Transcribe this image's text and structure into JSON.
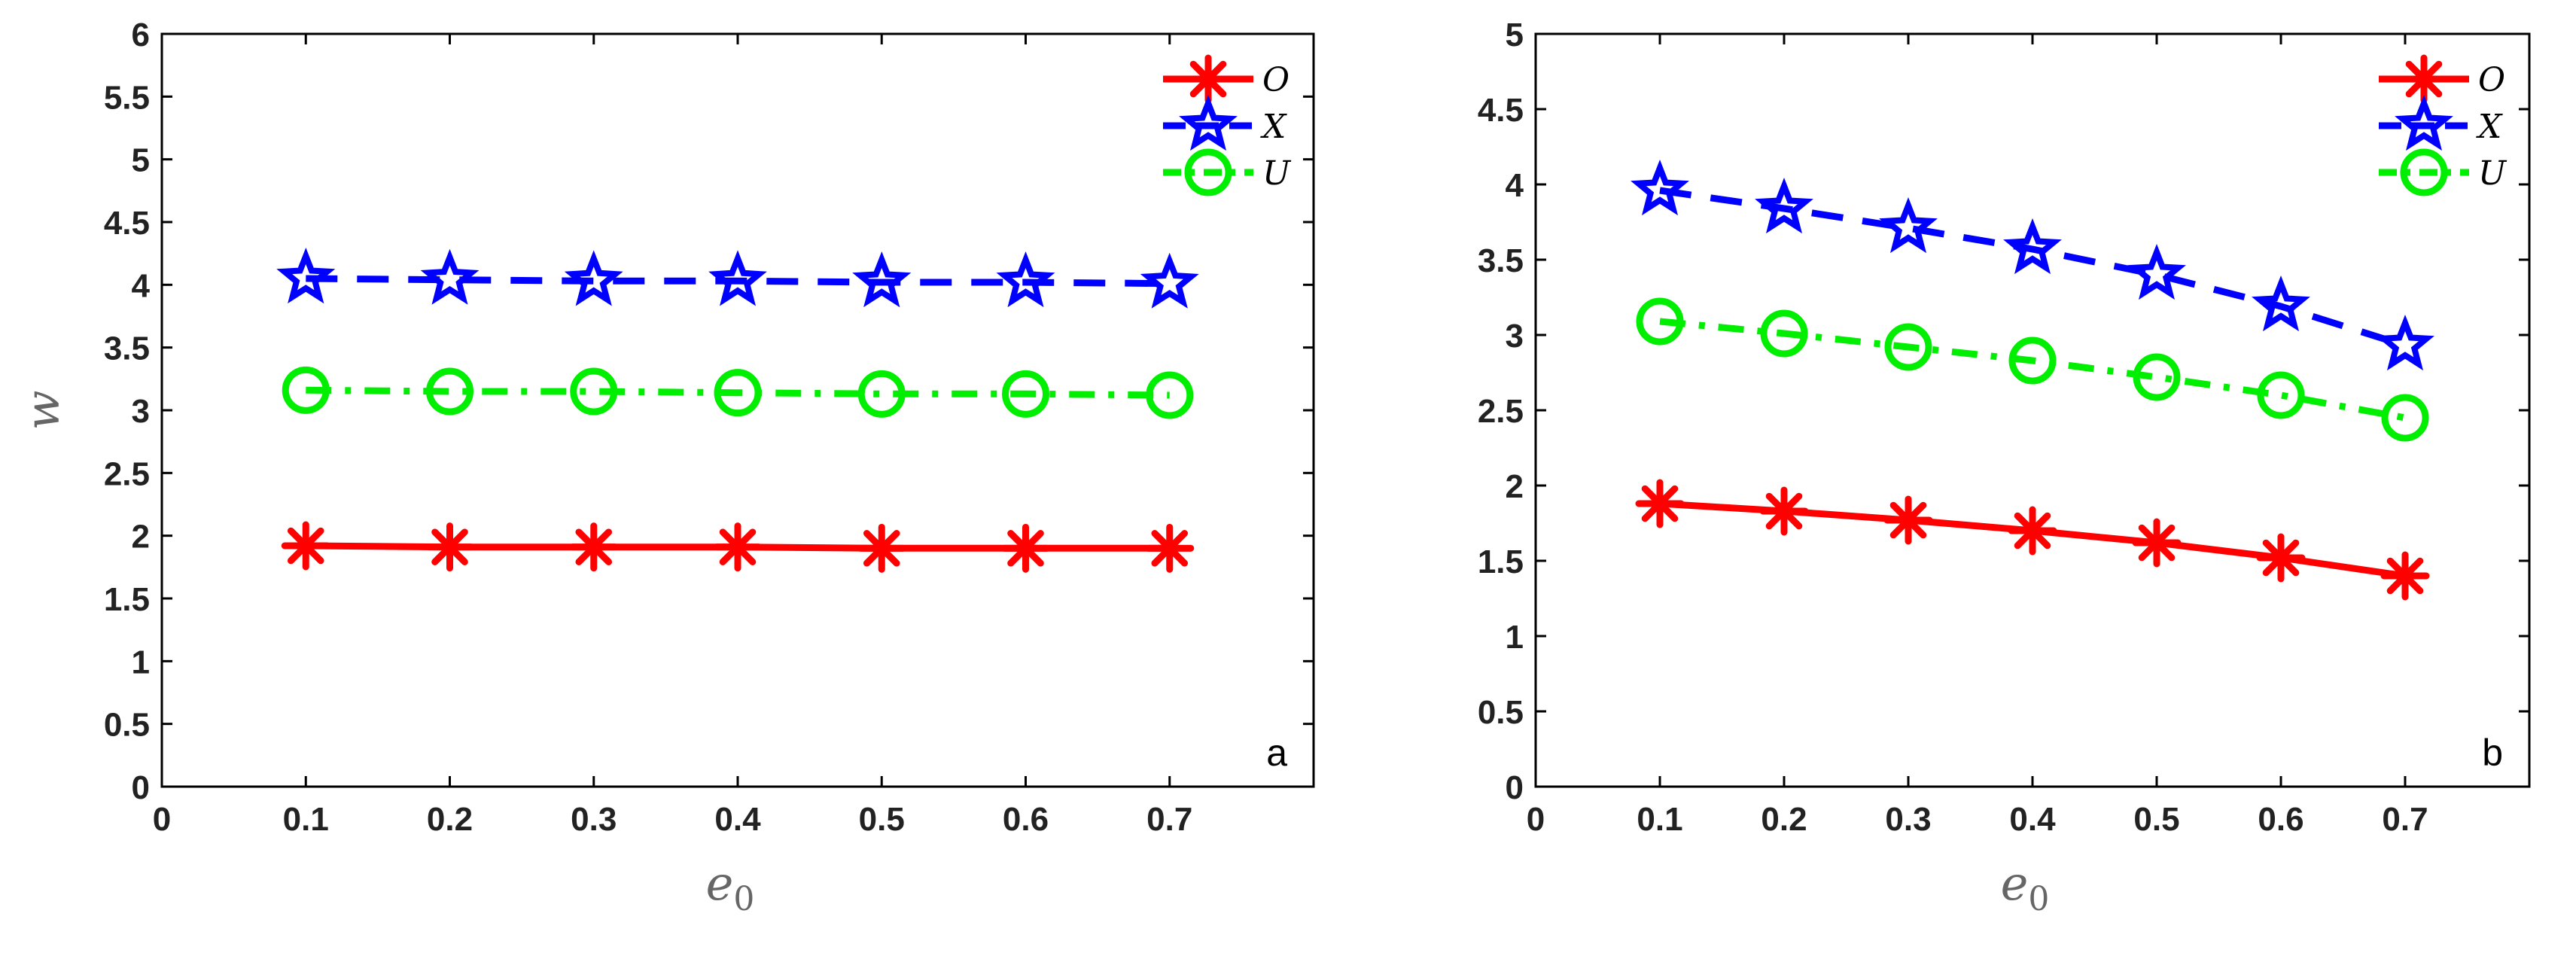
{
  "chart_data": [
    {
      "type": "line",
      "panel_label": "a",
      "x": [
        0.1,
        0.2,
        0.3,
        0.4,
        0.5,
        0.6,
        0.7
      ],
      "xlim": [
        0,
        0.8
      ],
      "ylim": [
        0,
        6
      ],
      "xticks": [
        "0",
        "0.1",
        "0.2",
        "0.3",
        "0.4",
        "0.5",
        "0.6",
        "0.7"
      ],
      "yticks": [
        "0",
        "0.5",
        "1",
        "1.5",
        "2",
        "2.5",
        "3",
        "3.5",
        "4",
        "4.5",
        "5",
        "5.5",
        "6"
      ],
      "xlabel": "e",
      "xlabel_sub": "0",
      "ylabel": "w",
      "legend": "top-right",
      "series": [
        {
          "name": "O",
          "color": "#ff0000",
          "marker": "asterisk",
          "line": "solid",
          "values": [
            1.92,
            1.91,
            1.91,
            1.91,
            1.9,
            1.9,
            1.9
          ]
        },
        {
          "name": "X",
          "color": "#0000ff",
          "marker": "star",
          "line": "dashed",
          "values": [
            4.05,
            4.04,
            4.03,
            4.03,
            4.02,
            4.02,
            4.01
          ]
        },
        {
          "name": "U",
          "color": "#00ee00",
          "marker": "circle",
          "line": "dashdot",
          "values": [
            3.16,
            3.15,
            3.15,
            3.14,
            3.13,
            3.13,
            3.12
          ]
        }
      ]
    },
    {
      "type": "line",
      "panel_label": "b",
      "x": [
        0.1,
        0.2,
        0.3,
        0.4,
        0.5,
        0.6,
        0.7
      ],
      "xlim": [
        0,
        0.8
      ],
      "ylim": [
        0,
        5
      ],
      "xticks": [
        "0",
        "0.1",
        "0.2",
        "0.3",
        "0.4",
        "0.5",
        "0.6",
        "0.7"
      ],
      "yticks": [
        "0",
        "0.5",
        "1",
        "1.5",
        "2",
        "2.5",
        "3",
        "3.5",
        "4",
        "4.5",
        "5"
      ],
      "xlabel": "e",
      "xlabel_sub": "0",
      "ylabel": "",
      "legend": "top-right",
      "series": [
        {
          "name": "O",
          "color": "#ff0000",
          "marker": "asterisk",
          "line": "solid",
          "values": [
            1.88,
            1.83,
            1.77,
            1.7,
            1.62,
            1.52,
            1.4
          ]
        },
        {
          "name": "X",
          "color": "#0000ff",
          "marker": "star",
          "line": "dashed",
          "values": [
            3.96,
            3.84,
            3.71,
            3.57,
            3.4,
            3.19,
            2.93
          ]
        },
        {
          "name": "U",
          "color": "#00ee00",
          "marker": "circle",
          "line": "dashdot",
          "values": [
            3.09,
            3.01,
            2.92,
            2.83,
            2.72,
            2.6,
            2.45
          ]
        }
      ]
    }
  ]
}
